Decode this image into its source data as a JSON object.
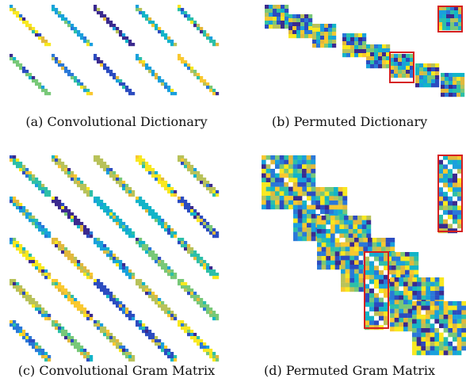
{
  "figure": {
    "panels": [
      {
        "id": "a",
        "caption": "(a) Convolutional Dictionary"
      },
      {
        "id": "b",
        "caption": "(b) Permuted Dictionary"
      },
      {
        "id": "c",
        "caption": "(c) Convolutional Gram Matrix"
      },
      {
        "id": "d",
        "caption": "(d) Permuted Gram Matrix"
      }
    ],
    "colors": {
      "palette": [
        "#3b2a8e",
        "#2c4cc0",
        "#2a78d8",
        "#1aa0dc",
        "#13b4c8",
        "#2dbfa8",
        "#78c878",
        "#b8c25a",
        "#e2b83c",
        "#f9c830",
        "#f8e820"
      ],
      "highlight": "#d62020"
    }
  }
}
